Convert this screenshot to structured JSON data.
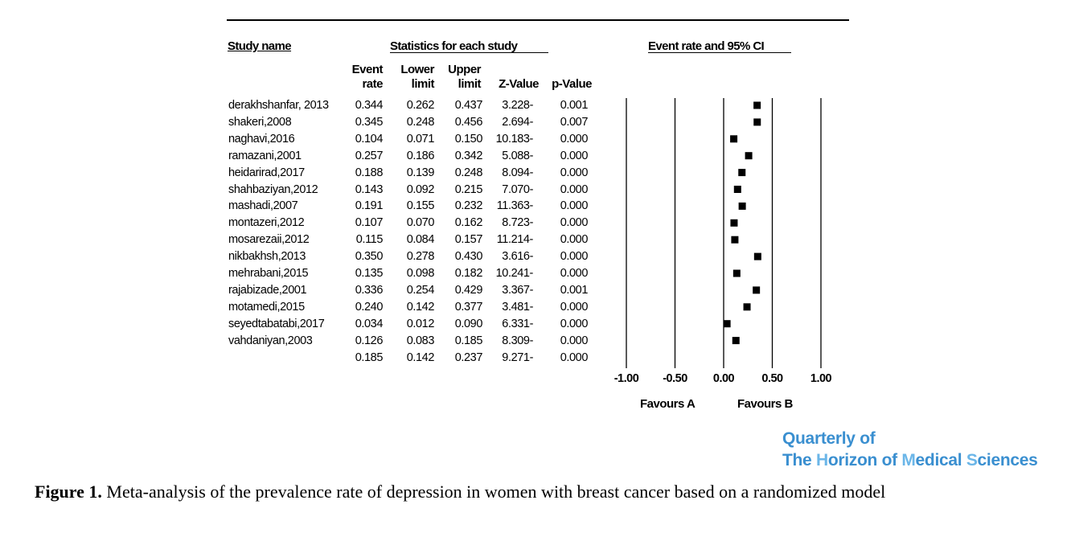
{
  "headers": {
    "study_name": "Study name",
    "statistics": "Statistics for each study",
    "event_rate_ci": "Event rate and 95% CI",
    "columns": {
      "event_rate": [
        "Event",
        "rate"
      ],
      "lower_limit": [
        "Lower",
        "limit"
      ],
      "upper_limit": [
        "Upper",
        "limit"
      ],
      "z_value": "Z-Value",
      "p_value": "p-Value"
    }
  },
  "rows": [
    {
      "study": "derakhshanfar, 2013",
      "rate": "0.344",
      "lower": "0.262",
      "upper": "0.437",
      "z": "3.228-",
      "p": "0.001"
    },
    {
      "study": "shakeri,2008",
      "rate": "0.345",
      "lower": "0.248",
      "upper": "0.456",
      "z": "2.694-",
      "p": "0.007"
    },
    {
      "study": "naghavi,2016",
      "rate": "0.104",
      "lower": "0.071",
      "upper": "0.150",
      "z": "10.183-",
      "p": "0.000"
    },
    {
      "study": "ramazani,2001",
      "rate": "0.257",
      "lower": "0.186",
      "upper": "0.342",
      "z": "5.088-",
      "p": "0.000"
    },
    {
      "study": "heidarirad,2017",
      "rate": "0.188",
      "lower": "0.139",
      "upper": "0.248",
      "z": "8.094-",
      "p": "0.000"
    },
    {
      "study": "shahbaziyan,2012",
      "rate": "0.143",
      "lower": "0.092",
      "upper": "0.215",
      "z": "7.070-",
      "p": "0.000"
    },
    {
      "study": "mashadi,2007",
      "rate": "0.191",
      "lower": "0.155",
      "upper": "0.232",
      "z": "11.363-",
      "p": "0.000"
    },
    {
      "study": "montazeri,2012",
      "rate": "0.107",
      "lower": "0.070",
      "upper": "0.162",
      "z": "8.723-",
      "p": "0.000"
    },
    {
      "study": "mosarezaii,2012",
      "rate": "0.115",
      "lower": "0.084",
      "upper": "0.157",
      "z": "11.214-",
      "p": "0.000"
    },
    {
      "study": "nikbakhsh,2013",
      "rate": "0.350",
      "lower": "0.278",
      "upper": "0.430",
      "z": "3.616-",
      "p": "0.000"
    },
    {
      "study": "mehrabani,2015",
      "rate": "0.135",
      "lower": "0.098",
      "upper": "0.182",
      "z": "10.241-",
      "p": "0.000"
    },
    {
      "study": "rajabizade,2001",
      "rate": "0.336",
      "lower": "0.254",
      "upper": "0.429",
      "z": "3.367-",
      "p": "0.001"
    },
    {
      "study": "motamedi,2015",
      "rate": "0.240",
      "lower": "0.142",
      "upper": "0.377",
      "z": "3.481-",
      "p": "0.000"
    },
    {
      "study": "seyedtabatabi,2017",
      "rate": "0.034",
      "lower": "0.012",
      "upper": "0.090",
      "z": "6.331-",
      "p": "0.000"
    },
    {
      "study": "vahdaniyan,2003",
      "rate": "0.126",
      "lower": "0.083",
      "upper": "0.185",
      "z": "8.309-",
      "p": "0.000"
    },
    {
      "study": "",
      "rate": "0.185",
      "lower": "0.142",
      "upper": "0.237",
      "z": "9.271-",
      "p": "0.000"
    }
  ],
  "chart_data": {
    "type": "scatter",
    "subtype": "forest",
    "title": "Event rate and 95% CI",
    "xlim": [
      -1.0,
      1.0
    ],
    "x_ticks": [
      "-1.00",
      "-0.50",
      "0.00",
      "0.50",
      "1.00"
    ],
    "x_tick_values": [
      -1.0,
      -0.5,
      0.0,
      0.5,
      1.0
    ],
    "grid": true,
    "favours_left": "Favours A",
    "favours_right": "Favours B",
    "series": [
      {
        "values": [
          0.344,
          0.345,
          0.104,
          0.257,
          0.188,
          0.143,
          0.191,
          0.107,
          0.115,
          0.35,
          0.135,
          0.336,
          0.24,
          0.034,
          0.126
        ]
      }
    ],
    "marker_color": "#000000"
  },
  "journal": {
    "line1": "Quarterly of",
    "line2_parts": [
      "The ",
      "H",
      "orizon of ",
      "M",
      "edical ",
      "S",
      "ciences"
    ],
    "color": "#3a8fd0",
    "highlight_color": "#6bb6e8"
  },
  "caption": {
    "label": "Figure 1.",
    "text": " Meta-analysis of the prevalence rate of depression in women with breast cancer based on a randomized model"
  }
}
